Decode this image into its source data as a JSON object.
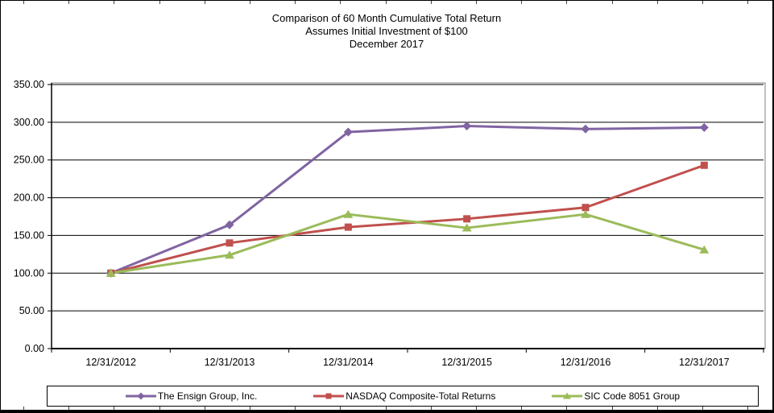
{
  "chart_data": {
    "type": "line",
    "title": "Comparison of 60 Month Cumulative Total Return",
    "subtitle": "Assumes Initial Investment of $100",
    "date_line": "December 2017",
    "categories": [
      "12/31/2012",
      "12/31/2013",
      "12/31/2014",
      "12/31/2015",
      "12/31/2016",
      "12/31/2017"
    ],
    "series": [
      {
        "name": "The Ensign Group, Inc.",
        "color": "#8064A2",
        "marker": "diamond",
        "values": [
          100.0,
          164.0,
          287.0,
          295.0,
          291.0,
          293.0
        ]
      },
      {
        "name": "NASDAQ Composite-Total Returns",
        "color": "#C0504D",
        "marker": "square",
        "values": [
          100.0,
          140.0,
          161.0,
          172.0,
          187.0,
          243.0
        ]
      },
      {
        "name": "SIC Code 8051 Group",
        "color": "#9BBB59",
        "marker": "triangle",
        "values": [
          100.0,
          124.0,
          178.0,
          160.0,
          178.0,
          131.0
        ]
      }
    ],
    "ylim": [
      0,
      350
    ],
    "y_tick_step": 50,
    "y_tick_labels": [
      "0.00",
      "50.00",
      "100.00",
      "150.00",
      "200.00",
      "250.00",
      "300.00",
      "350.00"
    ],
    "grid": "horizontal",
    "gridline_color": "#000000",
    "plot_border_color": "#808080",
    "legend_position": "bottom"
  }
}
